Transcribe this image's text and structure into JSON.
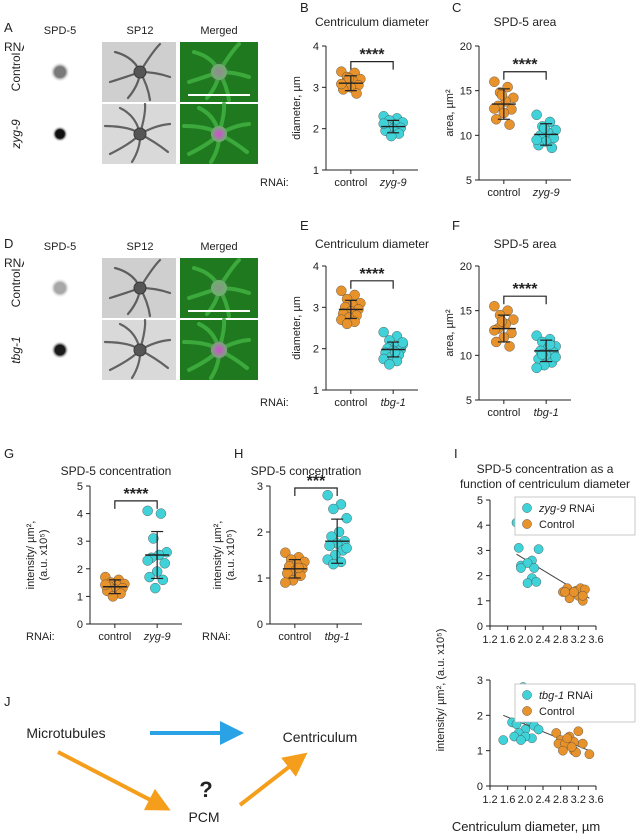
{
  "panels": {
    "A": {
      "letter": "A",
      "col1": "SPD-5",
      "col2": "SP12",
      "col3": "Merged",
      "rnai": "RNAi:",
      "row1": "Control",
      "row2": "zyg-9"
    },
    "D": {
      "letter": "D",
      "col1": "SPD-5",
      "col2": "SP12",
      "col3": "Merged",
      "rnai": "RNAi:",
      "row1": "Control",
      "row2": "tbg-1"
    },
    "J": {
      "letter": "J",
      "microtubules": "Microtubules",
      "centriculum": "Centriculum",
      "pcm": "PCM",
      "question": "?"
    }
  },
  "colors": {
    "control": "#e8922b",
    "rnai": "#3fd3d9",
    "micro_gfp": "#3fae3f",
    "spd5_magenta": "#e040e0",
    "arrow_blue": "#29a3e6",
    "arrow_orange": "#f59e1c"
  },
  "chart_data": [
    {
      "id": "B",
      "letter": "B",
      "type": "scatter",
      "title": "Centriculum diameter",
      "ylabel": "diameter, µm",
      "ylim": [
        1,
        4
      ],
      "yticks": [
        1,
        2,
        3,
        4
      ],
      "rnai_label": "RNAi:",
      "categories": [
        "control",
        "zyg-9"
      ],
      "significance": "****",
      "series": [
        {
          "category": "control",
          "mean": 3.1,
          "sd": 0.18,
          "values": [
            3.38,
            3.35,
            3.25,
            3.2,
            3.15,
            3.1,
            3.05,
            3.0,
            2.95,
            2.85,
            3.22,
            3.08
          ]
        },
        {
          "category": "zyg-9",
          "mean": 2.05,
          "sd": 0.15,
          "values": [
            2.3,
            2.25,
            2.2,
            2.15,
            2.1,
            2.05,
            2.02,
            2.0,
            1.95,
            1.88,
            1.82,
            2.12
          ]
        }
      ]
    },
    {
      "id": "C",
      "letter": "C",
      "type": "scatter",
      "title": "SPD-5 area",
      "ylabel": "area, µm²",
      "ylim": [
        5,
        20
      ],
      "yticks": [
        5,
        10,
        15,
        20
      ],
      "categories": [
        "control",
        "zyg-9"
      ],
      "significance": "****",
      "series": [
        {
          "category": "control",
          "mean": 13.5,
          "sd": 1.7,
          "values": [
            16.0,
            15.4,
            14.8,
            14.2,
            13.8,
            13.3,
            12.9,
            12.5,
            11.8,
            11.2,
            14.5,
            13.0
          ]
        },
        {
          "category": "zyg-9",
          "mean": 10.1,
          "sd": 1.2,
          "values": [
            12.3,
            11.5,
            11.0,
            10.6,
            10.3,
            10.0,
            9.7,
            9.3,
            8.9,
            8.6,
            10.8,
            9.5
          ]
        }
      ]
    },
    {
      "id": "E",
      "letter": "E",
      "type": "scatter",
      "title": "Centriculum diameter",
      "ylabel": "diameter, µm",
      "ylim": [
        1,
        4
      ],
      "yticks": [
        1,
        2,
        3,
        4
      ],
      "rnai_label": "RNAi:",
      "categories": [
        "control",
        "tbg-1"
      ],
      "significance": "****",
      "series": [
        {
          "category": "control",
          "mean": 2.95,
          "sd": 0.22,
          "values": [
            3.4,
            3.3,
            3.2,
            3.1,
            3.05,
            3.0,
            2.95,
            2.9,
            2.85,
            2.8,
            2.75,
            2.7,
            2.65,
            2.6
          ]
        },
        {
          "category": "tbg-1",
          "mean": 1.98,
          "sd": 0.18,
          "values": [
            2.4,
            2.3,
            2.2,
            2.1,
            2.05,
            2.0,
            1.98,
            1.95,
            1.9,
            1.85,
            1.8,
            1.75,
            1.7,
            1.62,
            2.15,
            1.92
          ]
        }
      ]
    },
    {
      "id": "F",
      "letter": "F",
      "type": "scatter",
      "title": "SPD-5 area",
      "ylabel": "area, µm²",
      "ylim": [
        5,
        20
      ],
      "yticks": [
        5,
        10,
        15,
        20
      ],
      "categories": [
        "control",
        "tbg-1"
      ],
      "significance": "****",
      "series": [
        {
          "category": "control",
          "mean": 13.0,
          "sd": 1.5,
          "values": [
            15.5,
            15.0,
            14.5,
            14.0,
            13.5,
            13.0,
            12.5,
            12.0,
            11.5,
            11.0,
            13.8,
            12.8
          ]
        },
        {
          "category": "tbg-1",
          "mean": 10.5,
          "sd": 1.2,
          "values": [
            12.2,
            11.8,
            11.5,
            11.0,
            10.8,
            10.5,
            10.3,
            10.0,
            9.6,
            9.2,
            8.9,
            8.6,
            11.2,
            10.1,
            9.8
          ]
        }
      ]
    },
    {
      "id": "G",
      "letter": "G",
      "type": "scatter",
      "title": "SPD-5 concentration",
      "ylabel": "intensity/ µm²,",
      "ylabel2": "(a.u. x10⁵)",
      "ylim": [
        0,
        5
      ],
      "yticks": [
        0,
        1,
        2,
        3,
        4,
        5
      ],
      "rnai_label": "RNAi:",
      "categories": [
        "control",
        "zyg-9"
      ],
      "significance": "****",
      "series": [
        {
          "category": "control",
          "mean": 1.35,
          "sd": 0.25,
          "values": [
            1.7,
            1.6,
            1.5,
            1.45,
            1.4,
            1.35,
            1.3,
            1.25,
            1.2,
            1.1,
            1.0,
            1.42
          ]
        },
        {
          "category": "zyg-9",
          "mean": 2.5,
          "sd": 0.85,
          "values": [
            4.1,
            4.0,
            3.1,
            2.6,
            2.5,
            2.4,
            2.2,
            1.9,
            1.7,
            1.6,
            1.3,
            2.3
          ]
        }
      ]
    },
    {
      "id": "H",
      "letter": "H",
      "type": "scatter",
      "title": "SPD-5 concentration",
      "ylabel": "intensity/ µm²,",
      "ylabel2": "(a.u. x10⁵)",
      "ylim": [
        0,
        3
      ],
      "yticks": [
        0,
        1,
        2,
        3
      ],
      "rnai_label": "RNAi:",
      "categories": [
        "control",
        "tbg-1"
      ],
      "significance": "***",
      "series": [
        {
          "category": "control",
          "mean": 1.2,
          "sd": 0.2,
          "values": [
            1.55,
            1.45,
            1.4,
            1.35,
            1.3,
            1.25,
            1.2,
            1.15,
            1.1,
            1.05,
            0.95,
            0.9,
            1.22
          ]
        },
        {
          "category": "tbg-1",
          "mean": 1.8,
          "sd": 0.48,
          "values": [
            2.8,
            2.6,
            2.5,
            2.3,
            2.0,
            1.9,
            1.8,
            1.75,
            1.7,
            1.6,
            1.5,
            1.4,
            1.35,
            1.3,
            1.65
          ]
        }
      ]
    },
    {
      "id": "I1",
      "letter": "I",
      "type": "scatter",
      "title": "SPD-5 concentration as a",
      "title2": "function of centriculum diameter",
      "ylim": [
        0,
        5
      ],
      "yticks": [
        0,
        1,
        2,
        3,
        4,
        5
      ],
      "xlim": [
        1.2,
        3.6
      ],
      "xticks": [
        1.2,
        1.6,
        2.0,
        2.4,
        2.8,
        3.2,
        3.6
      ],
      "legend": [
        {
          "italic": "zyg-9",
          "text": " RNAi",
          "color": "#3fd3d9"
        },
        {
          "italic": "",
          "text": "Control",
          "color": "#e8922b"
        }
      ],
      "trend": [
        [
          1.8,
          2.85
        ],
        [
          3.45,
          1.1
        ]
      ],
      "series": [
        {
          "name": "zyg-9 RNAi",
          "x": [
            1.8,
            2.1,
            1.85,
            2.15,
            2.3,
            1.9,
            2.05,
            2.2,
            2.15,
            2.05,
            2.25,
            1.9
          ],
          "y": [
            4.1,
            4.0,
            3.1,
            2.6,
            3.05,
            2.4,
            2.5,
            2.3,
            1.9,
            1.7,
            1.75,
            2.3
          ]
        },
        {
          "name": "Control",
          "x": [
            2.85,
            2.95,
            3.05,
            3.15,
            3.2,
            3.25,
            3.3,
            3.35,
            3.0,
            3.1,
            3.3,
            2.9
          ],
          "y": [
            1.35,
            1.5,
            1.3,
            1.4,
            1.2,
            1.5,
            1.0,
            1.45,
            1.1,
            1.35,
            1.2,
            1.35
          ]
        }
      ]
    },
    {
      "id": "I2",
      "letter": "",
      "type": "scatter",
      "ylabel": "intensity/ µm², (a.u. x10⁵)",
      "xlabel": "Centriculum diameter, µm",
      "ylim": [
        0,
        3
      ],
      "yticks": [
        0,
        1,
        2,
        3
      ],
      "xlim": [
        1.2,
        3.6
      ],
      "xticks": [
        1.2,
        1.6,
        2.0,
        2.4,
        2.8,
        3.2,
        3.6
      ],
      "legend": [
        {
          "italic": "tbg-1",
          "text": " RNAi",
          "color": "#3fd3d9"
        },
        {
          "italic": "",
          "text": "Control",
          "color": "#e8922b"
        }
      ],
      "trend": [
        [
          1.5,
          2.0
        ],
        [
          3.45,
          1.0
        ]
      ],
      "series": [
        {
          "name": "tbg-1 RNAi",
          "x": [
            1.95,
            2.0,
            1.9,
            2.05,
            1.7,
            2.1,
            1.95,
            1.8,
            2.2,
            2.0,
            1.85,
            2.3,
            1.75,
            2.15,
            1.5,
            2.0,
            1.9
          ],
          "y": [
            2.8,
            2.6,
            2.5,
            2.3,
            1.8,
            1.85,
            1.9,
            1.75,
            1.7,
            1.6,
            1.5,
            1.6,
            1.4,
            1.35,
            1.3,
            1.4,
            1.3
          ]
        },
        {
          "name": "Control",
          "x": [
            2.7,
            2.8,
            2.75,
            3.0,
            3.1,
            3.2,
            2.9,
            3.3,
            3.1,
            2.85,
            3.15,
            3.45,
            2.95,
            3.05
          ],
          "y": [
            1.5,
            1.3,
            1.2,
            1.4,
            1.25,
            1.55,
            1.2,
            1.2,
            1.0,
            1.0,
            0.95,
            0.9,
            1.35,
            1.1
          ]
        }
      ]
    }
  ]
}
